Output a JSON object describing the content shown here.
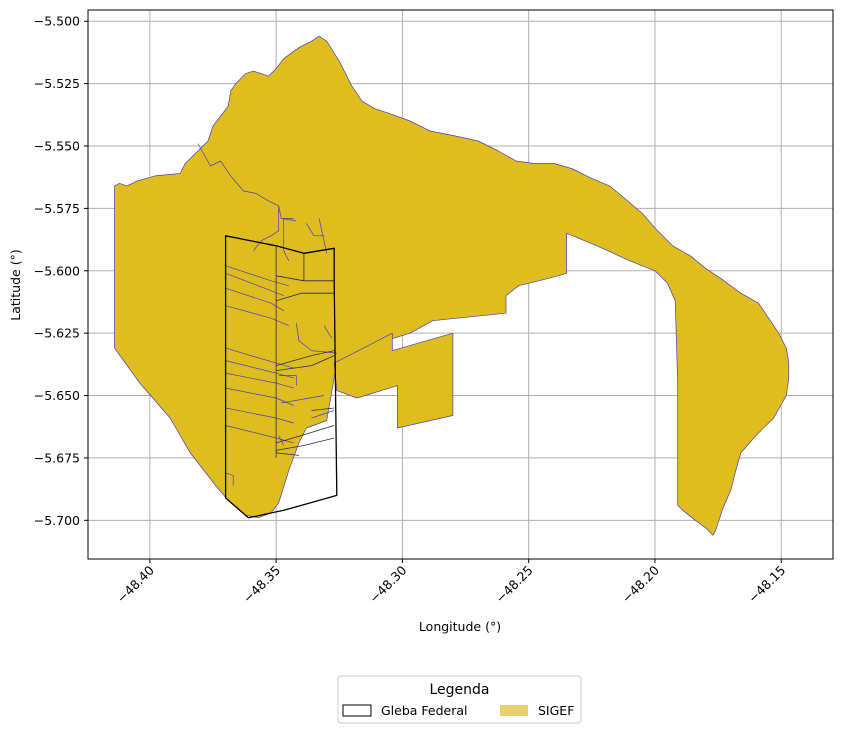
{
  "chart_data": {
    "type": "map",
    "xlabel": "Longitude (°)",
    "ylabel": "Latitude (°)",
    "xlim": [
      -48.4245,
      -48.1295
    ],
    "ylim": [
      -5.7155,
      -5.4955
    ],
    "grid": true,
    "x_ticks": [
      {
        "value": -48.4,
        "label": "−48.40"
      },
      {
        "value": -48.35,
        "label": "−48.35"
      },
      {
        "value": -48.3,
        "label": "−48.30"
      },
      {
        "value": -48.25,
        "label": "−48.25"
      },
      {
        "value": -48.2,
        "label": "−48.20"
      },
      {
        "value": -48.15,
        "label": "−48.15"
      }
    ],
    "y_ticks": [
      {
        "value": -5.5,
        "label": "−5.500"
      },
      {
        "value": -5.525,
        "label": "−5.525"
      },
      {
        "value": -5.55,
        "label": "−5.550"
      },
      {
        "value": -5.575,
        "label": "−5.575"
      },
      {
        "value": -5.6,
        "label": "−5.600"
      },
      {
        "value": -5.625,
        "label": "−5.625"
      },
      {
        "value": -5.65,
        "label": "−5.650"
      },
      {
        "value": -5.675,
        "label": "−5.675"
      },
      {
        "value": -5.7,
        "label": "−5.700"
      }
    ],
    "legend": {
      "title": "Legenda",
      "placement": "bottom-center",
      "entries": [
        {
          "label": "Gleba Federal",
          "style": "outline",
          "color": "#000000"
        },
        {
          "label": "SIGEF",
          "style": "fill",
          "color": "#e8d06e"
        }
      ]
    },
    "colors": {
      "sigef_fill": "#e0bd1e",
      "sigef_edge": "#4b3fb0",
      "gleba_edge": "#000000",
      "grid": "#b0b0b0"
    },
    "layers": [
      {
        "name": "SIGEF",
        "kind": "fill",
        "polygons": [
          [
            [
              -48.414,
              -5.631
            ],
            [
              -48.414,
              -5.566
            ],
            [
              -48.412,
              -5.565
            ],
            [
              -48.409,
              -5.566
            ],
            [
              -48.405,
              -5.564
            ],
            [
              -48.398,
              -5.562
            ],
            [
              -48.388,
              -5.561
            ],
            [
              -48.386,
              -5.557
            ],
            [
              -48.38,
              -5.551
            ],
            [
              -48.377,
              -5.548
            ],
            [
              -48.375,
              -5.542
            ],
            [
              -48.372,
              -5.538
            ],
            [
              -48.369,
              -5.534
            ],
            [
              -48.368,
              -5.528
            ],
            [
              -48.366,
              -5.525
            ],
            [
              -48.362,
              -5.521
            ],
            [
              -48.359,
              -5.52
            ],
            [
              -48.356,
              -5.521
            ],
            [
              -48.353,
              -5.522
            ],
            [
              -48.35,
              -5.519
            ],
            [
              -48.347,
              -5.515
            ],
            [
              -48.343,
              -5.512
            ],
            [
              -48.34,
              -5.51
            ],
            [
              -48.336,
              -5.508
            ],
            [
              -48.333,
              -5.506
            ],
            [
              -48.33,
              -5.508
            ],
            [
              -48.325,
              -5.516
            ],
            [
              -48.32,
              -5.526
            ],
            [
              -48.316,
              -5.532
            ],
            [
              -48.311,
              -5.535
            ],
            [
              -48.305,
              -5.537
            ],
            [
              -48.297,
              -5.54
            ],
            [
              -48.289,
              -5.544
            ],
            [
              -48.279,
              -5.546
            ],
            [
              -48.27,
              -5.548
            ],
            [
              -48.262,
              -5.552
            ],
            [
              -48.255,
              -5.556
            ],
            [
              -48.248,
              -5.557
            ],
            [
              -48.24,
              -5.557
            ],
            [
              -48.233,
              -5.559
            ],
            [
              -48.225,
              -5.563
            ],
            [
              -48.218,
              -5.566
            ],
            [
              -48.212,
              -5.571
            ],
            [
              -48.205,
              -5.577
            ],
            [
              -48.199,
              -5.584
            ],
            [
              -48.193,
              -5.59
            ],
            [
              -48.186,
              -5.594
            ],
            [
              -48.18,
              -5.599
            ],
            [
              -48.174,
              -5.603
            ],
            [
              -48.166,
              -5.609
            ],
            [
              -48.159,
              -5.613
            ],
            [
              -48.155,
              -5.619
            ],
            [
              -48.151,
              -5.625
            ],
            [
              -48.148,
              -5.631
            ],
            [
              -48.147,
              -5.637
            ],
            [
              -48.147,
              -5.643
            ],
            [
              -48.148,
              -5.65
            ],
            [
              -48.153,
              -5.659
            ],
            [
              -48.16,
              -5.666
            ],
            [
              -48.166,
              -5.673
            ],
            [
              -48.168,
              -5.68
            ],
            [
              -48.17,
              -5.688
            ],
            [
              -48.173,
              -5.695
            ],
            [
              -48.176,
              -5.704
            ],
            [
              -48.177,
              -5.706
            ],
            [
              -48.18,
              -5.703
            ],
            [
              -48.184,
              -5.7
            ],
            [
              -48.189,
              -5.696
            ],
            [
              -48.191,
              -5.694
            ],
            [
              -48.191,
              -5.645
            ],
            [
              -48.192,
              -5.612
            ],
            [
              -48.195,
              -5.605
            ],
            [
              -48.2,
              -5.6
            ],
            [
              -48.21,
              -5.596
            ],
            [
              -48.223,
              -5.59
            ],
            [
              -48.235,
              -5.585
            ],
            [
              -48.235,
              -5.601
            ],
            [
              -48.242,
              -5.603
            ],
            [
              -48.254,
              -5.606
            ],
            [
              -48.259,
              -5.61
            ],
            [
              -48.259,
              -5.617
            ],
            [
              -48.288,
              -5.62
            ],
            [
              -48.297,
              -5.625
            ],
            [
              -48.313,
              -5.63
            ],
            [
              -48.326,
              -5.637
            ],
            [
              -48.33,
              -5.66
            ],
            [
              -48.338,
              -5.663
            ],
            [
              -48.341,
              -5.669
            ],
            [
              -48.345,
              -5.68
            ],
            [
              -48.349,
              -5.693
            ],
            [
              -48.352,
              -5.697
            ],
            [
              -48.357,
              -5.699
            ],
            [
              -48.362,
              -5.698
            ],
            [
              -48.369,
              -5.692
            ],
            [
              -48.374,
              -5.686
            ],
            [
              -48.384,
              -5.673
            ],
            [
              -48.392,
              -5.659
            ],
            [
              -48.404,
              -5.645
            ]
          ],
          [
            [
              -48.327,
              -5.637
            ],
            [
              -48.304,
              -5.625
            ],
            [
              -48.304,
              -5.632
            ],
            [
              -48.28,
              -5.625
            ],
            [
              -48.28,
              -5.658
            ],
            [
              -48.302,
              -5.663
            ],
            [
              -48.302,
              -5.646
            ],
            [
              -48.318,
              -5.651
            ],
            [
              -48.326,
              -5.648
            ]
          ]
        ]
      },
      {
        "name": "SIGEF internal parcel lines",
        "kind": "lines",
        "lines": [
          [
            [
              -48.381,
              -5.549
            ],
            [
              -48.376,
              -5.558
            ],
            [
              -48.372,
              -5.556
            ],
            [
              -48.368,
              -5.562
            ],
            [
              -48.363,
              -5.568
            ],
            [
              -48.358,
              -5.569
            ],
            [
              -48.353,
              -5.572
            ],
            [
              -48.349,
              -5.574
            ],
            [
              -48.348,
              -5.579
            ],
            [
              -48.342,
              -5.58
            ]
          ],
          [
            [
              -48.349,
              -5.574
            ],
            [
              -48.349,
              -5.584
            ],
            [
              -48.352,
              -5.586
            ],
            [
              -48.356,
              -5.588
            ],
            [
              -48.359,
              -5.592
            ]
          ],
          [
            [
              -48.343,
              -5.579
            ],
            [
              -48.347,
              -5.579
            ],
            [
              -48.347,
              -5.592
            ],
            [
              -48.345,
              -5.596
            ]
          ],
          [
            [
              -48.333,
              -5.579
            ],
            [
              -48.33,
              -5.593
            ]
          ],
          [
            [
              -48.338,
              -5.581
            ],
            [
              -48.335,
              -5.586
            ],
            [
              -48.331,
              -5.586
            ]
          ],
          [
            [
              -48.37,
              -5.598
            ],
            [
              -48.352,
              -5.604
            ],
            [
              -48.345,
              -5.606
            ]
          ],
          [
            [
              -48.37,
              -5.601
            ],
            [
              -48.352,
              -5.608
            ],
            [
              -48.347,
              -5.61
            ]
          ],
          [
            [
              -48.37,
              -5.607
            ],
            [
              -48.352,
              -5.613
            ],
            [
              -48.347,
              -5.616
            ]
          ],
          [
            [
              -48.37,
              -5.614
            ],
            [
              -48.352,
              -5.619
            ],
            [
              -48.345,
              -5.622
            ]
          ],
          [
            [
              -48.37,
              -5.631
            ],
            [
              -48.35,
              -5.637
            ],
            [
              -48.343,
              -5.639
            ]
          ],
          [
            [
              -48.37,
              -5.636
            ],
            [
              -48.35,
              -5.641
            ],
            [
              -48.343,
              -5.643
            ]
          ],
          [
            [
              -48.37,
              -5.641
            ],
            [
              -48.35,
              -5.645
            ],
            [
              -48.343,
              -5.647
            ]
          ],
          [
            [
              -48.37,
              -5.647
            ],
            [
              -48.35,
              -5.651
            ],
            [
              -48.343,
              -5.654
            ]
          ],
          [
            [
              -48.37,
              -5.655
            ],
            [
              -48.35,
              -5.659
            ],
            [
              -48.343,
              -5.661
            ]
          ],
          [
            [
              -48.37,
              -5.662
            ],
            [
              -48.35,
              -5.667
            ],
            [
              -48.343,
              -5.669
            ]
          ],
          [
            [
              -48.342,
              -5.621
            ],
            [
              -48.341,
              -5.628
            ],
            [
              -48.336,
              -5.632
            ],
            [
              -48.326,
              -5.633
            ]
          ],
          [
            [
              -48.331,
              -5.622
            ],
            [
              -48.328,
              -5.627
            ]
          ],
          [
            [
              -48.349,
              -5.642
            ],
            [
              -48.342,
              -5.642
            ],
            [
              -48.342,
              -5.646
            ]
          ],
          [
            [
              -48.348,
              -5.653
            ],
            [
              -48.331,
              -5.65
            ]
          ],
          [
            [
              -48.336,
              -5.659
            ],
            [
              -48.327,
              -5.656
            ]
          ],
          [
            [
              -48.349,
              -5.666
            ],
            [
              -48.347,
              -5.67
            ]
          ],
          [
            [
              -48.37,
              -5.681
            ],
            [
              -48.367,
              -5.682
            ],
            [
              -48.367,
              -5.686
            ]
          ]
        ]
      },
      {
        "name": "Gleba Federal",
        "kind": "outline",
        "polygons": [
          [
            [
              -48.37,
              -5.586
            ],
            [
              -48.35,
              -5.59
            ],
            [
              -48.339,
              -5.593
            ],
            [
              -48.327,
              -5.591
            ],
            [
              -48.327,
              -5.604
            ],
            [
              -48.326,
              -5.69
            ],
            [
              -48.333,
              -5.692
            ],
            [
              -48.347,
              -5.696
            ],
            [
              -48.361,
              -5.699
            ],
            [
              -48.37,
              -5.691
            ]
          ]
        ],
        "inner_lines": [
          [
            [
              -48.35,
              -5.59
            ],
            [
              -48.35,
              -5.675
            ]
          ],
          [
            [
              -48.339,
              -5.593
            ],
            [
              -48.339,
              -5.604
            ],
            [
              -48.35,
              -5.602
            ]
          ],
          [
            [
              -48.339,
              -5.604
            ],
            [
              -48.327,
              -5.604
            ]
          ],
          [
            [
              -48.35,
              -5.612
            ],
            [
              -48.34,
              -5.609
            ],
            [
              -48.327,
              -5.609
            ]
          ],
          [
            [
              -48.35,
              -5.638
            ],
            [
              -48.336,
              -5.634
            ],
            [
              -48.327,
              -5.632
            ]
          ],
          [
            [
              -48.35,
              -5.64
            ],
            [
              -48.336,
              -5.638
            ],
            [
              -48.327,
              -5.634
            ]
          ],
          [
            [
              -48.336,
              -5.656
            ],
            [
              -48.327,
              -5.655
            ]
          ],
          [
            [
              -48.35,
              -5.669
            ],
            [
              -48.34,
              -5.666
            ],
            [
              -48.327,
              -5.662
            ]
          ],
          [
            [
              -48.35,
              -5.672
            ],
            [
              -48.339,
              -5.67
            ],
            [
              -48.327,
              -5.667
            ]
          ],
          [
            [
              -48.35,
              -5.673
            ],
            [
              -48.341,
              -5.674
            ]
          ]
        ]
      }
    ]
  }
}
